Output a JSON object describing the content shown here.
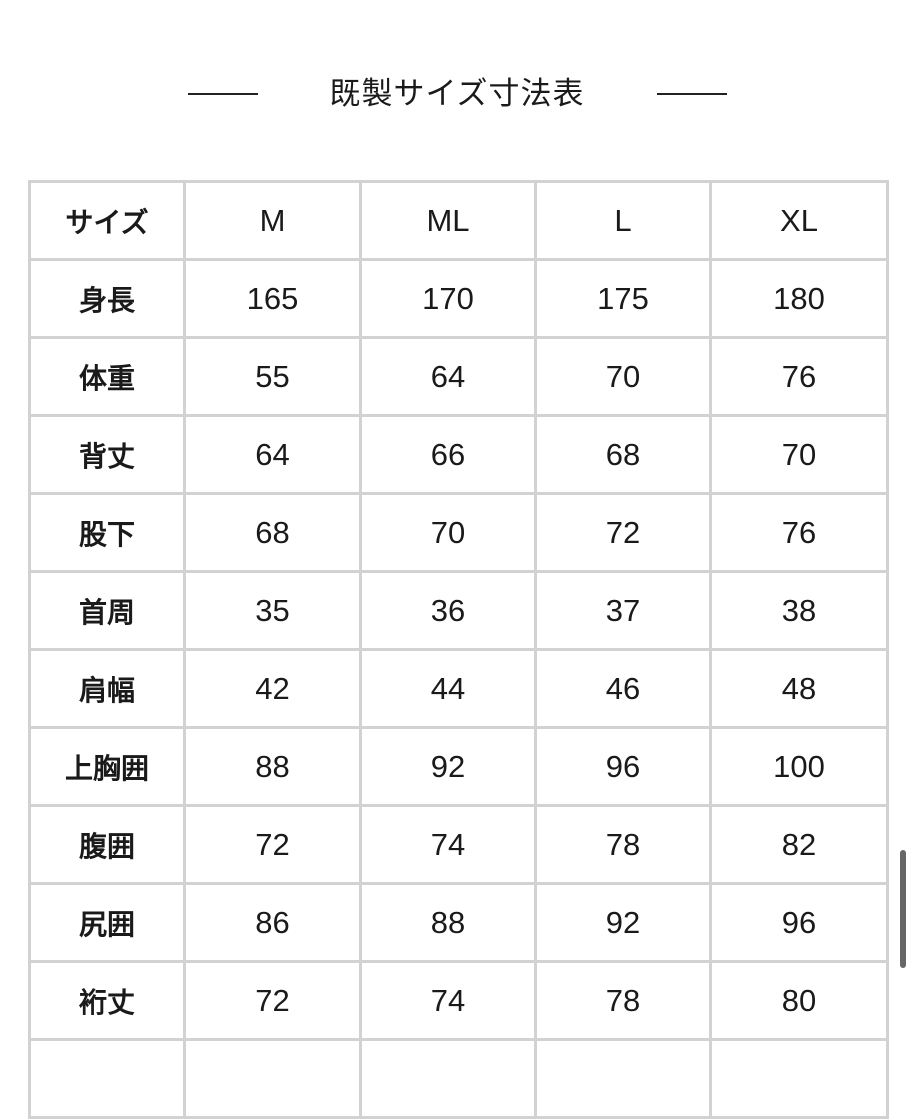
{
  "title": "既製サイズ寸法表",
  "table": {
    "header": [
      "サイズ",
      "M",
      "ML",
      "L",
      "XL"
    ],
    "rows": [
      [
        "身長",
        "165",
        "170",
        "175",
        "180"
      ],
      [
        "体重",
        "55",
        "64",
        "70",
        "76"
      ],
      [
        "背丈",
        "64",
        "66",
        "68",
        "70"
      ],
      [
        "股下",
        "68",
        "70",
        "72",
        "76"
      ],
      [
        "首周",
        "35",
        "36",
        "37",
        "38"
      ],
      [
        "肩幅",
        "42",
        "44",
        "46",
        "48"
      ],
      [
        "上胸囲",
        "88",
        "92",
        "96",
        "100"
      ],
      [
        "腹囲",
        "72",
        "74",
        "78",
        "82"
      ],
      [
        "尻囲",
        "86",
        "88",
        "92",
        "96"
      ],
      [
        "裄丈",
        "72",
        "74",
        "78",
        "80"
      ]
    ]
  }
}
